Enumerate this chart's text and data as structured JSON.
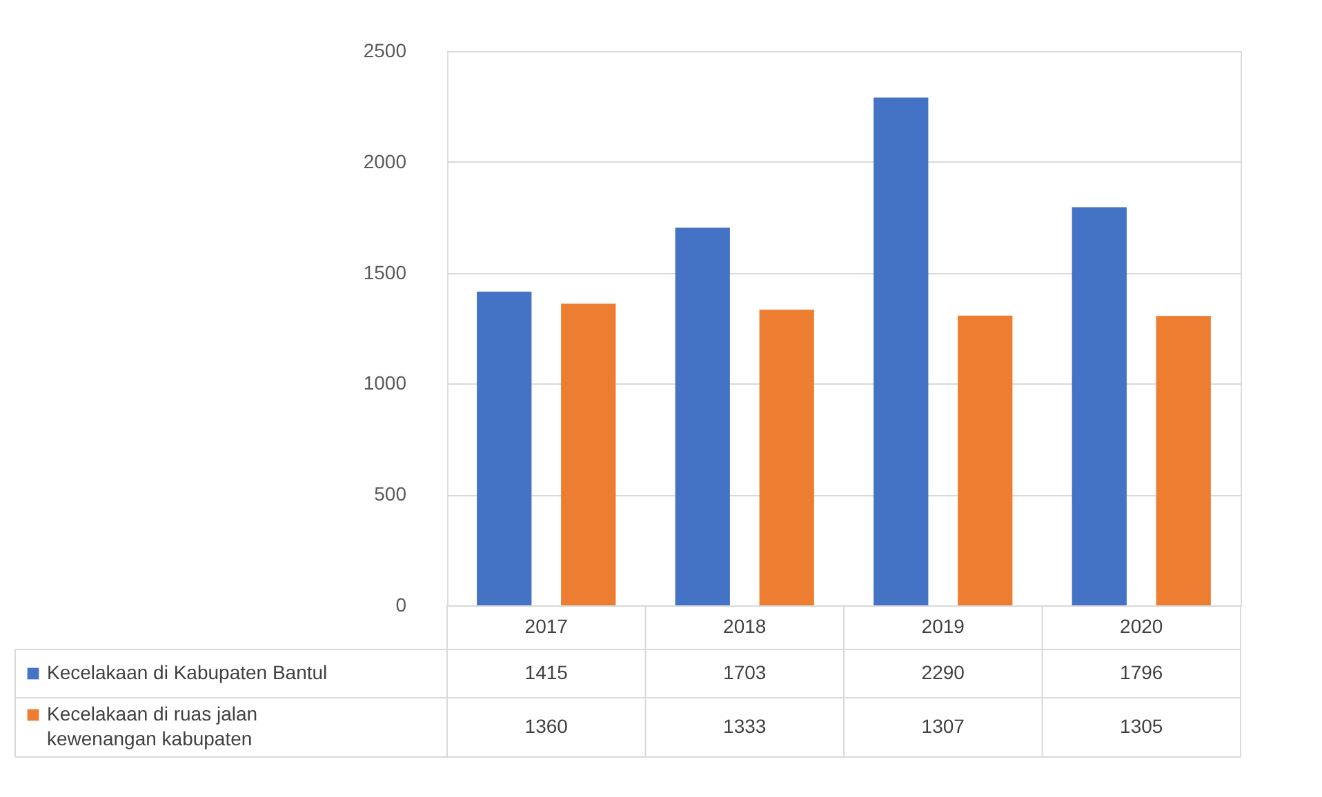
{
  "chart_data": {
    "type": "bar",
    "categories": [
      "2017",
      "2018",
      "2019",
      "2020"
    ],
    "series": [
      {
        "name": "Kecelakaan di Kabupaten Bantul",
        "color": "#4472c4",
        "values": [
          1415,
          1703,
          2290,
          1796
        ]
      },
      {
        "name": "Kecelakaan di ruas jalan kewenangan kabupaten",
        "color": "#ed7d31",
        "values": [
          1360,
          1333,
          1307,
          1305
        ]
      }
    ],
    "ylim": [
      0,
      2500
    ],
    "yticks": [
      0,
      500,
      1000,
      1500,
      2000,
      2500
    ],
    "grid": "y",
    "legend": "bottom left",
    "data_labels": true
  }
}
